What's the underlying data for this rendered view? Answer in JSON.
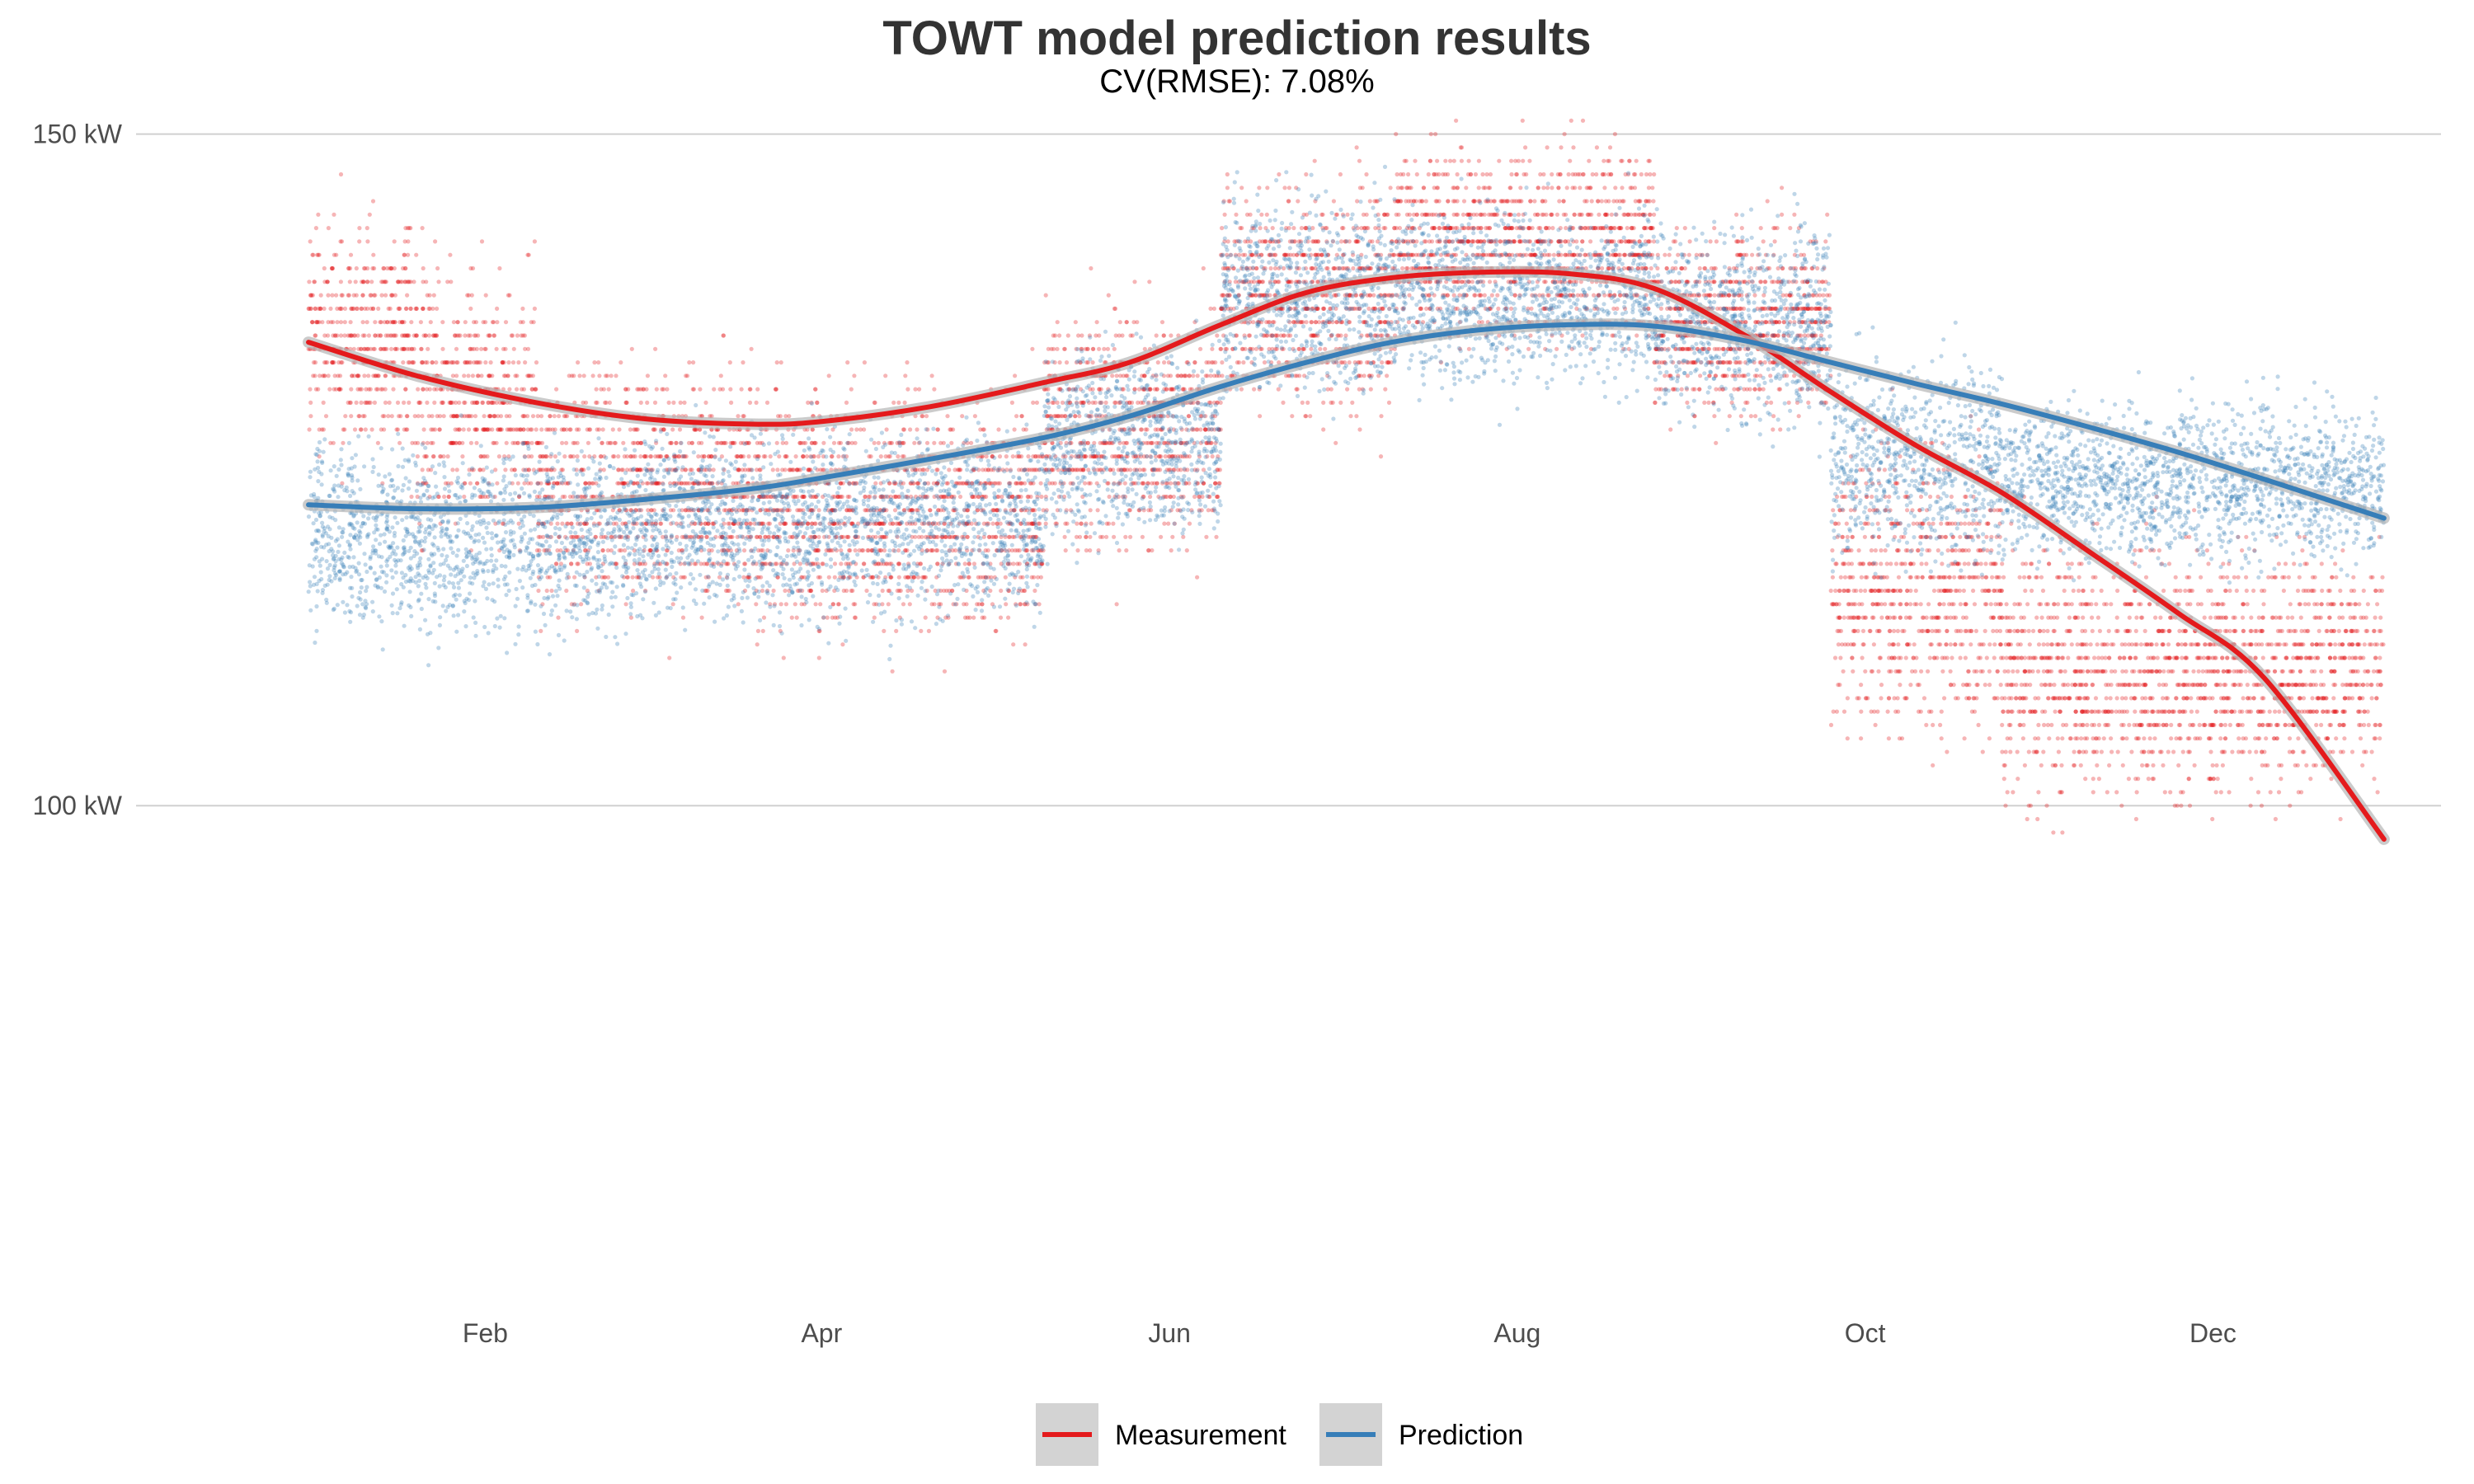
{
  "chart_data": {
    "type": "scatter",
    "title": "TOWT model prediction results",
    "subtitle": "CV(RMSE): 7.08%",
    "xlabel": "",
    "ylabel": "",
    "x_ticks": [
      {
        "label": "Feb",
        "x": "2021-02-01"
      },
      {
        "label": "Apr",
        "x": "2021-04-01"
      },
      {
        "label": "Jun",
        "x": "2021-06-01"
      },
      {
        "label": "Aug",
        "x": "2021-08-01"
      },
      {
        "label": "Oct",
        "x": "2021-10-01"
      },
      {
        "label": "Dec",
        "x": "2021-12-01"
      }
    ],
    "y_ticks": [
      {
        "label": "100 kW",
        "y": 100
      },
      {
        "label": "150 kW",
        "y": 150
      }
    ],
    "xlim": [
      "2020-12-21",
      "2022-01-10"
    ],
    "ylim": [
      63,
      152
    ],
    "grid": {
      "horizontal_major": true,
      "vertical": false
    },
    "legend": {
      "position": "bottom"
    },
    "series": [
      {
        "name": "Measurement",
        "color": "#e41a1c",
        "smooth": [
          {
            "x": "2021-01-01",
            "y": 134.5
          },
          {
            "x": "2021-01-20",
            "y": 132.0
          },
          {
            "x": "2021-02-10",
            "y": 130.0
          },
          {
            "x": "2021-03-01",
            "y": 128.8
          },
          {
            "x": "2021-03-20",
            "y": 128.4
          },
          {
            "x": "2021-04-01",
            "y": 128.6
          },
          {
            "x": "2021-04-20",
            "y": 129.7
          },
          {
            "x": "2021-05-10",
            "y": 131.5
          },
          {
            "x": "2021-05-25",
            "y": 133.0
          },
          {
            "x": "2021-06-10",
            "y": 135.8
          },
          {
            "x": "2021-06-25",
            "y": 138.2
          },
          {
            "x": "2021-07-10",
            "y": 139.3
          },
          {
            "x": "2021-07-25",
            "y": 139.7
          },
          {
            "x": "2021-08-10",
            "y": 139.6
          },
          {
            "x": "2021-08-25",
            "y": 138.5
          },
          {
            "x": "2021-09-10",
            "y": 135.0
          },
          {
            "x": "2021-09-25",
            "y": 130.8
          },
          {
            "x": "2021-10-10",
            "y": 126.8
          },
          {
            "x": "2021-10-25",
            "y": 123.3
          },
          {
            "x": "2021-11-10",
            "y": 118.7
          },
          {
            "x": "2021-11-25",
            "y": 114.3
          },
          {
            "x": "2021-12-10",
            "y": 109.5
          },
          {
            "x": "2021-12-31",
            "y": 97.5
          }
        ]
      },
      {
        "name": "Prediction",
        "color": "#377eb8",
        "smooth": [
          {
            "x": "2021-01-01",
            "y": 122.4
          },
          {
            "x": "2021-01-20",
            "y": 122.1
          },
          {
            "x": "2021-02-10",
            "y": 122.2
          },
          {
            "x": "2021-03-01",
            "y": 122.8
          },
          {
            "x": "2021-03-20",
            "y": 123.6
          },
          {
            "x": "2021-04-01",
            "y": 124.4
          },
          {
            "x": "2021-04-20",
            "y": 125.8
          },
          {
            "x": "2021-05-10",
            "y": 127.4
          },
          {
            "x": "2021-05-25",
            "y": 129.0
          },
          {
            "x": "2021-06-10",
            "y": 131.2
          },
          {
            "x": "2021-06-25",
            "y": 133.0
          },
          {
            "x": "2021-07-10",
            "y": 134.5
          },
          {
            "x": "2021-07-25",
            "y": 135.4
          },
          {
            "x": "2021-08-10",
            "y": 135.8
          },
          {
            "x": "2021-08-25",
            "y": 135.7
          },
          {
            "x": "2021-09-10",
            "y": 134.6
          },
          {
            "x": "2021-09-25",
            "y": 133.0
          },
          {
            "x": "2021-10-10",
            "y": 131.4
          },
          {
            "x": "2021-10-25",
            "y": 129.9
          },
          {
            "x": "2021-11-10",
            "y": 128.1
          },
          {
            "x": "2021-11-25",
            "y": 126.3
          },
          {
            "x": "2021-12-10",
            "y": 124.3
          },
          {
            "x": "2021-12-31",
            "y": 121.4
          }
        ]
      }
    ],
    "scatter_bands": {
      "Measurement": [
        {
          "from": "2021-01-01",
          "to": "2021-01-20",
          "center": 135,
          "spread": 14
        },
        {
          "from": "2021-01-20",
          "to": "2021-02-10",
          "center": 130,
          "spread": 16
        },
        {
          "from": "2021-02-10",
          "to": "2021-03-20",
          "center": 124,
          "spread": 15
        },
        {
          "from": "2021-03-20",
          "to": "2021-05-10",
          "center": 122,
          "spread": 15
        },
        {
          "from": "2021-05-10",
          "to": "2021-06-10",
          "center": 128,
          "spread": 15
        },
        {
          "from": "2021-06-10",
          "to": "2021-07-10",
          "center": 138,
          "spread": 14
        },
        {
          "from": "2021-07-10",
          "to": "2021-08-25",
          "center": 142,
          "spread": 12
        },
        {
          "from": "2021-08-25",
          "to": "2021-09-25",
          "center": 136,
          "spread": 12
        },
        {
          "from": "2021-09-25",
          "to": "2021-10-25",
          "center": 116,
          "spread": 18
        },
        {
          "from": "2021-10-25",
          "to": "2021-12-31",
          "center": 110,
          "spread": 16
        }
      ],
      "Prediction": [
        {
          "from": "2021-01-01",
          "to": "2021-03-01",
          "center": 120,
          "spread": 12
        },
        {
          "from": "2021-03-01",
          "to": "2021-05-10",
          "center": 121,
          "spread": 12
        },
        {
          "from": "2021-05-10",
          "to": "2021-06-10",
          "center": 127,
          "spread": 12
        },
        {
          "from": "2021-06-10",
          "to": "2021-07-10",
          "center": 138,
          "spread": 12
        },
        {
          "from": "2021-07-10",
          "to": "2021-08-25",
          "center": 138,
          "spread": 11
        },
        {
          "from": "2021-08-25",
          "to": "2021-09-25",
          "center": 136,
          "spread": 12
        },
        {
          "from": "2021-09-25",
          "to": "2021-10-25",
          "center": 126,
          "spread": 13
        },
        {
          "from": "2021-10-25",
          "to": "2021-12-31",
          "center": 124,
          "spread": 10
        }
      ]
    }
  }
}
